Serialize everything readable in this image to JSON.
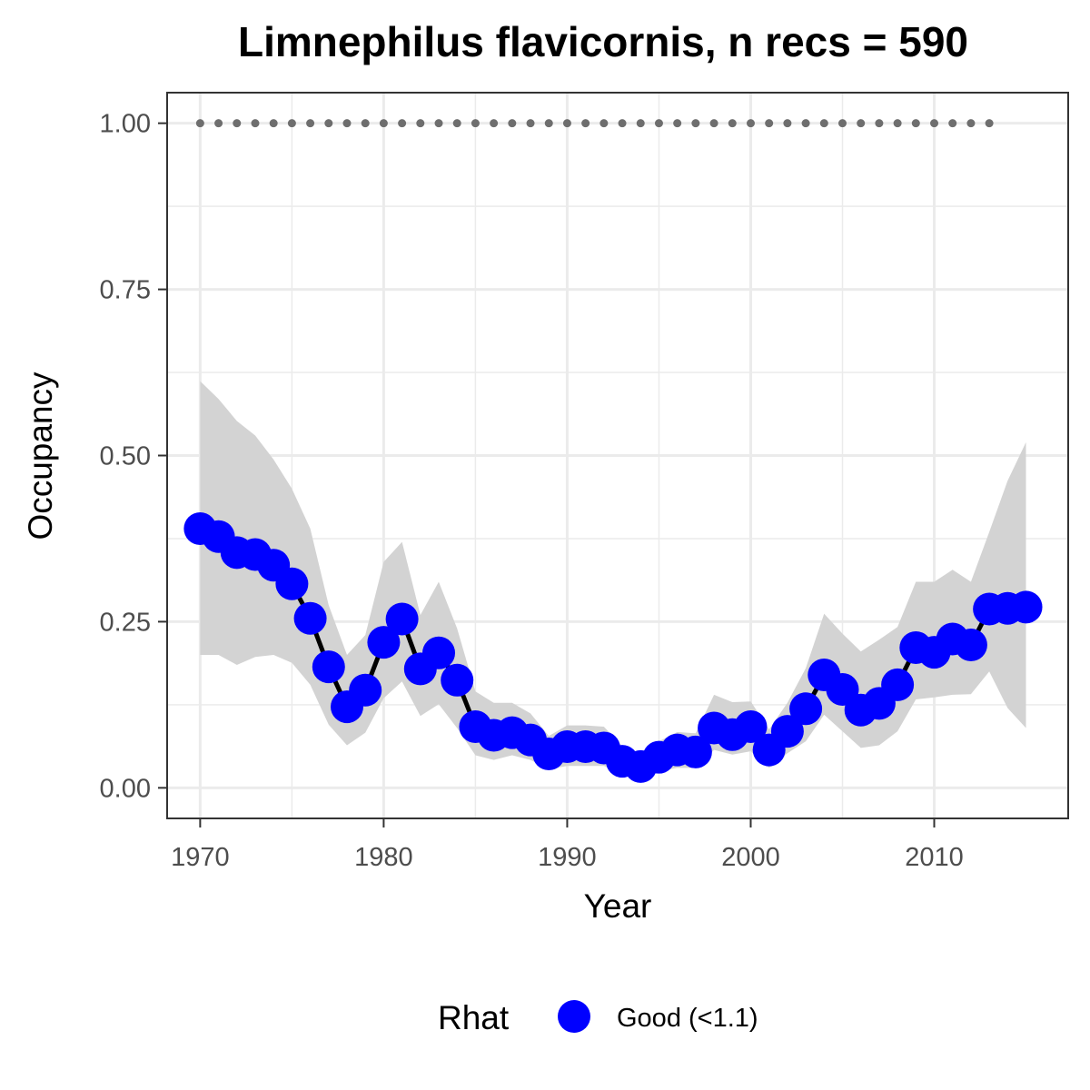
{
  "chart_data": {
    "type": "line",
    "title": "Limnephilus flavicornis, n recs = 590",
    "xlabel": "Year",
    "ylabel": "Occupancy",
    "xlim": [
      1968.2,
      2017.3
    ],
    "ylim": [
      -0.046,
      1.046
    ],
    "x_ticks": [
      "1970",
      "1980",
      "1990",
      "2000",
      "2010"
    ],
    "y_ticks": [
      "0.00",
      "0.25",
      "0.50",
      "0.75",
      "1.00"
    ],
    "grid": true,
    "legend_position": "bottom",
    "legend": {
      "title": "Rhat",
      "label": "Good (<1.1)"
    },
    "colors": {
      "points": "#0000ff",
      "line": "#000000",
      "ribbon": "#d3d3d3",
      "dotted": "#6e6e6e"
    },
    "series": [
      {
        "name": "Good (<1.1)",
        "x": [
          1970,
          1971,
          1972,
          1973,
          1974,
          1975,
          1976,
          1977,
          1978,
          1979,
          1980,
          1981,
          1982,
          1983,
          1984,
          1985,
          1986,
          1987,
          1988,
          1989,
          1990,
          1991,
          1992,
          1993,
          1994,
          1995,
          1996,
          1997,
          1998,
          1999,
          2000,
          2001,
          2002,
          2003,
          2004,
          2005,
          2006,
          2007,
          2008,
          2009,
          2010,
          2011,
          2012,
          2013,
          2014,
          2015
        ],
        "y": [
          0.39,
          0.378,
          0.354,
          0.351,
          0.335,
          0.307,
          0.255,
          0.182,
          0.122,
          0.147,
          0.219,
          0.254,
          0.179,
          0.203,
          0.162,
          0.092,
          0.079,
          0.083,
          0.072,
          0.051,
          0.062,
          0.062,
          0.06,
          0.04,
          0.032,
          0.046,
          0.057,
          0.054,
          0.09,
          0.08,
          0.092,
          0.057,
          0.085,
          0.119,
          0.17,
          0.148,
          0.117,
          0.127,
          0.155,
          0.211,
          0.204,
          0.224,
          0.215,
          0.269,
          0.27,
          0.272
        ],
        "lower": [
          0.2,
          0.2,
          0.185,
          0.197,
          0.2,
          0.188,
          0.155,
          0.095,
          0.064,
          0.083,
          0.135,
          0.16,
          0.108,
          0.126,
          0.09,
          0.049,
          0.042,
          0.049,
          0.042,
          0.028,
          0.033,
          0.033,
          0.033,
          0.022,
          0.02,
          0.025,
          0.03,
          0.03,
          0.057,
          0.05,
          0.055,
          0.03,
          0.052,
          0.07,
          0.11,
          0.085,
          0.06,
          0.064,
          0.085,
          0.133,
          0.136,
          0.14,
          0.141,
          0.175,
          0.12,
          0.09
        ],
        "upper": [
          0.612,
          0.585,
          0.552,
          0.53,
          0.494,
          0.45,
          0.39,
          0.275,
          0.2,
          0.23,
          0.34,
          0.37,
          0.26,
          0.31,
          0.24,
          0.145,
          0.128,
          0.128,
          0.112,
          0.078,
          0.094,
          0.094,
          0.092,
          0.063,
          0.052,
          0.07,
          0.084,
          0.082,
          0.14,
          0.129,
          0.13,
          0.088,
          0.128,
          0.18,
          0.262,
          0.232,
          0.205,
          0.223,
          0.242,
          0.31,
          0.31,
          0.328,
          0.31,
          0.385,
          0.462,
          0.52
        ]
      }
    ],
    "reference": {
      "x_start": 1970,
      "x_end": 2013,
      "y": 1.0
    }
  }
}
